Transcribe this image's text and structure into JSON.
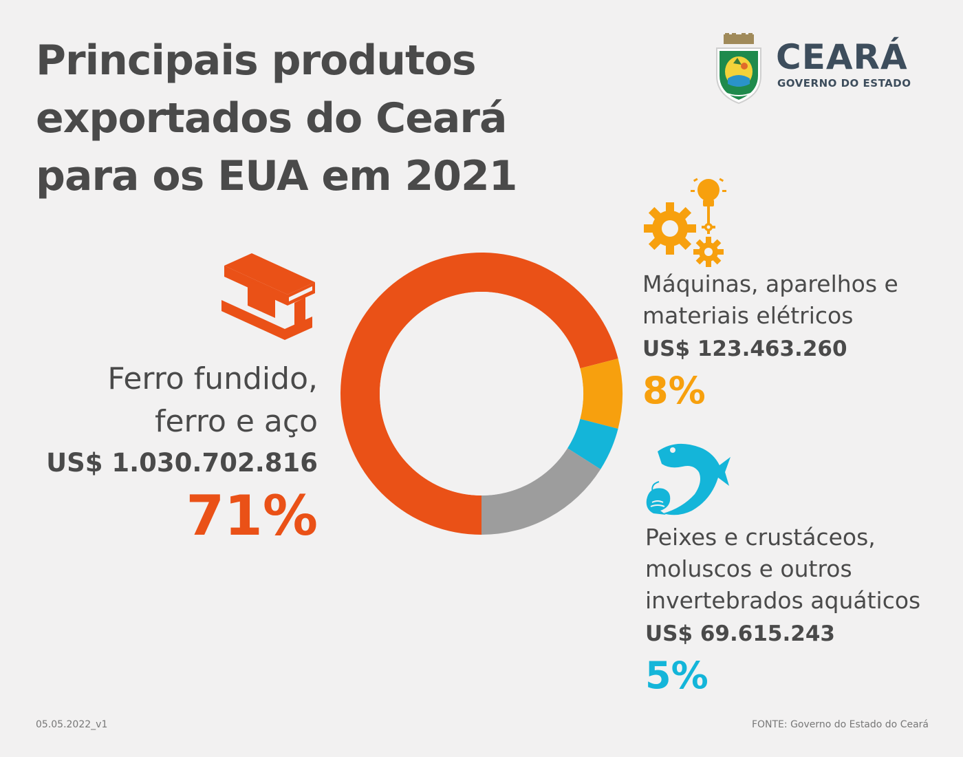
{
  "title": {
    "line1": "Principais produtos",
    "line2": "exportados do Ceará",
    "line3": "para os EUA em 2021"
  },
  "logo": {
    "name": "CEARÁ",
    "subtitle": "GOVERNO DO ESTADO",
    "icon": "state-coat-of-arms"
  },
  "colors": {
    "iron": "#ea5117",
    "machines": "#f7a00e",
    "fish": "#14b5d9",
    "other": "#9d9d9d"
  },
  "chart_data": {
    "type": "pie",
    "donut": true,
    "categories": [
      "Ferro fundido, ferro e aço",
      "Máquinas, aparelhos e materiais elétricos",
      "Peixes e crustáceos, moluscos e outros invertebrados aquáticos",
      ""
    ],
    "values": [
      71,
      8,
      5,
      16
    ],
    "colors": [
      "#ea5117",
      "#f7a00e",
      "#14b5d9",
      "#9d9d9d"
    ]
  },
  "items": {
    "iron": {
      "label_line1": "Ferro fundido,",
      "label_line2": "ferro e aço",
      "value": "US$ 1.030.702.816",
      "percent": "71%",
      "icon": "steel-beam-icon"
    },
    "machines": {
      "label_line1": "Máquinas, aparelhos e",
      "label_line2": "materiais elétricos",
      "value": "US$ 123.463.260",
      "percent": "8%",
      "icon": "gears-lightbulb-icon"
    },
    "fish": {
      "label_line1": "Peixes e crustáceos,",
      "label_line2": "moluscos e outros",
      "label_line3": "invertebrados aquáticos",
      "value": "US$ 69.615.243",
      "percent": "5%",
      "icon": "fish-shrimp-icon"
    }
  },
  "footer": {
    "version": "05.05.2022_v1",
    "source": "FONTE: Governo do Estado do Ceará"
  }
}
